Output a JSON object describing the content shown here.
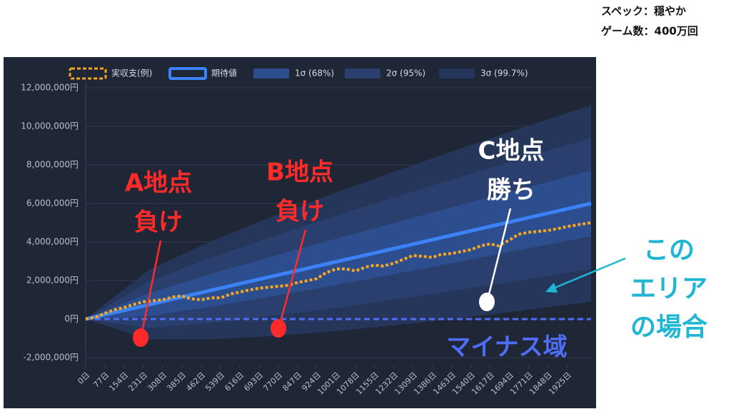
{
  "header": {
    "spec": "スペック：穏やか",
    "games": "ゲーム数：400万回"
  },
  "chart_data": {
    "type": "line",
    "xlim": [
      0,
      2020
    ],
    "ylim": [
      -2400000,
      12300000
    ],
    "xticks": [
      {
        "value": 0,
        "label": "0日"
      },
      {
        "value": 77,
        "label": "77日"
      },
      {
        "value": 154,
        "label": "154日"
      },
      {
        "value": 231,
        "label": "231日"
      },
      {
        "value": 308,
        "label": "308日"
      },
      {
        "value": 385,
        "label": "385日"
      },
      {
        "value": 462,
        "label": "462日"
      },
      {
        "value": 539,
        "label": "539日"
      },
      {
        "value": 616,
        "label": "616日"
      },
      {
        "value": 693,
        "label": "693日"
      },
      {
        "value": 770,
        "label": "770日"
      },
      {
        "value": 847,
        "label": "847日"
      },
      {
        "value": 924,
        "label": "924日"
      },
      {
        "value": 1001,
        "label": "1001日"
      },
      {
        "value": 1078,
        "label": "1078日"
      },
      {
        "value": 1155,
        "label": "1155日"
      },
      {
        "value": 1232,
        "label": "1232日"
      },
      {
        "value": 1309,
        "label": "1309日"
      },
      {
        "value": 1386,
        "label": "1386日"
      },
      {
        "value": 1463,
        "label": "1463日"
      },
      {
        "value": 1540,
        "label": "1540日"
      },
      {
        "value": 1617,
        "label": "1617日"
      },
      {
        "value": 1694,
        "label": "1694日"
      },
      {
        "value": 1771,
        "label": "1771日"
      },
      {
        "value": 1848,
        "label": "1848日"
      },
      {
        "value": 1925,
        "label": "1925日"
      }
    ],
    "yticks": [
      {
        "value": 12000000,
        "label": "12,000,000円"
      },
      {
        "value": 10000000,
        "label": "10,000,000円"
      },
      {
        "value": 8000000,
        "label": "8,000,000円"
      },
      {
        "value": 6000000,
        "label": "6,000,000円"
      },
      {
        "value": 4000000,
        "label": "4,000,000円"
      },
      {
        "value": 2000000,
        "label": "2,000,000円"
      },
      {
        "value": 0,
        "label": "0円"
      },
      {
        "value": -2000000,
        "label": "-2,000,000円"
      }
    ],
    "grid": true,
    "x": [
      0,
      250,
      500,
      750,
      1000,
      1250,
      1500,
      1750,
      2020
    ],
    "bands": [
      {
        "name": "3σ (99.7%)",
        "color": "#26365a",
        "upper": [
          0,
          2530000,
          4030000,
          5340000,
          6560000,
          7720000,
          8860000,
          9950000,
          11100000
        ],
        "lower": [
          0,
          -1050000,
          -1050000,
          -880000,
          -620000,
          -300000,
          60000,
          450000,
          900000
        ]
      },
      {
        "name": "2σ (95%)",
        "color": "#2a3f6e",
        "upper": [
          0,
          1940000,
          3180000,
          4300000,
          5360000,
          6380000,
          7390000,
          8360000,
          9400000
        ],
        "lower": [
          0,
          -460000,
          -200000,
          160000,
          580000,
          1040000,
          1530000,
          2040000,
          2600000
        ]
      },
      {
        "name": "1σ (68%)",
        "color": "#2d4e8e",
        "upper": [
          0,
          1340000,
          2340000,
          3270000,
          4170000,
          5050000,
          5930000,
          6780000,
          7700000
        ],
        "lower": [
          0,
          140000,
          640000,
          1190000,
          1770000,
          2370000,
          2990000,
          3620000,
          4300000
        ]
      }
    ],
    "series": [
      {
        "name": "実収支(例)",
        "color": "#f5a623",
        "x": [
          0,
          40,
          77,
          120,
          154,
          190,
          231,
          270,
          308,
          350,
          385,
          420,
          462,
          500,
          539,
          580,
          616,
          650,
          693,
          730,
          770,
          810,
          847,
          890,
          924,
          960,
          1001,
          1040,
          1078,
          1120,
          1155,
          1190,
          1232,
          1270,
          1309,
          1350,
          1386,
          1420,
          1463,
          1500,
          1540,
          1580,
          1617,
          1650,
          1694,
          1730,
          1771,
          1810,
          1848,
          1890,
          1925,
          1970,
          2020
        ],
        "values": [
          0,
          100000,
          300000,
          500000,
          600000,
          750000,
          900000,
          950000,
          1000000,
          1150000,
          1200000,
          1050000,
          1000000,
          1100000,
          1100000,
          1300000,
          1400000,
          1500000,
          1600000,
          1650000,
          1700000,
          1750000,
          1900000,
          2000000,
          2100000,
          2400000,
          2600000,
          2600000,
          2500000,
          2700000,
          2800000,
          2750000,
          2900000,
          3100000,
          3300000,
          3250000,
          3200000,
          3350000,
          3400000,
          3500000,
          3600000,
          3800000,
          3900000,
          3800000,
          4100000,
          4400000,
          4500000,
          4550000,
          4600000,
          4700000,
          4800000,
          4900000,
          5000000
        ]
      },
      {
        "name": "期待値",
        "color": "#3b82f6",
        "values": [
          0,
          740000,
          1490000,
          2230000,
          2970000,
          3710000,
          4460000,
          5200000,
          6000000
        ]
      }
    ],
    "annotations": [
      {
        "lines": [
          "A地点",
          "負け"
        ],
        "color": "#ff2a2a"
      },
      {
        "lines": [
          "B地点",
          "負け"
        ],
        "color": "#ff2a2a"
      },
      {
        "lines": [
          "C地点",
          "勝ち"
        ],
        "color": "#ffffff"
      },
      {
        "lines": [
          "この",
          "エリア",
          "の場合"
        ],
        "color": "#1fb6d4"
      },
      {
        "lines": [
          "マイナス域"
        ],
        "color": "#4f6ef7"
      }
    ]
  }
}
